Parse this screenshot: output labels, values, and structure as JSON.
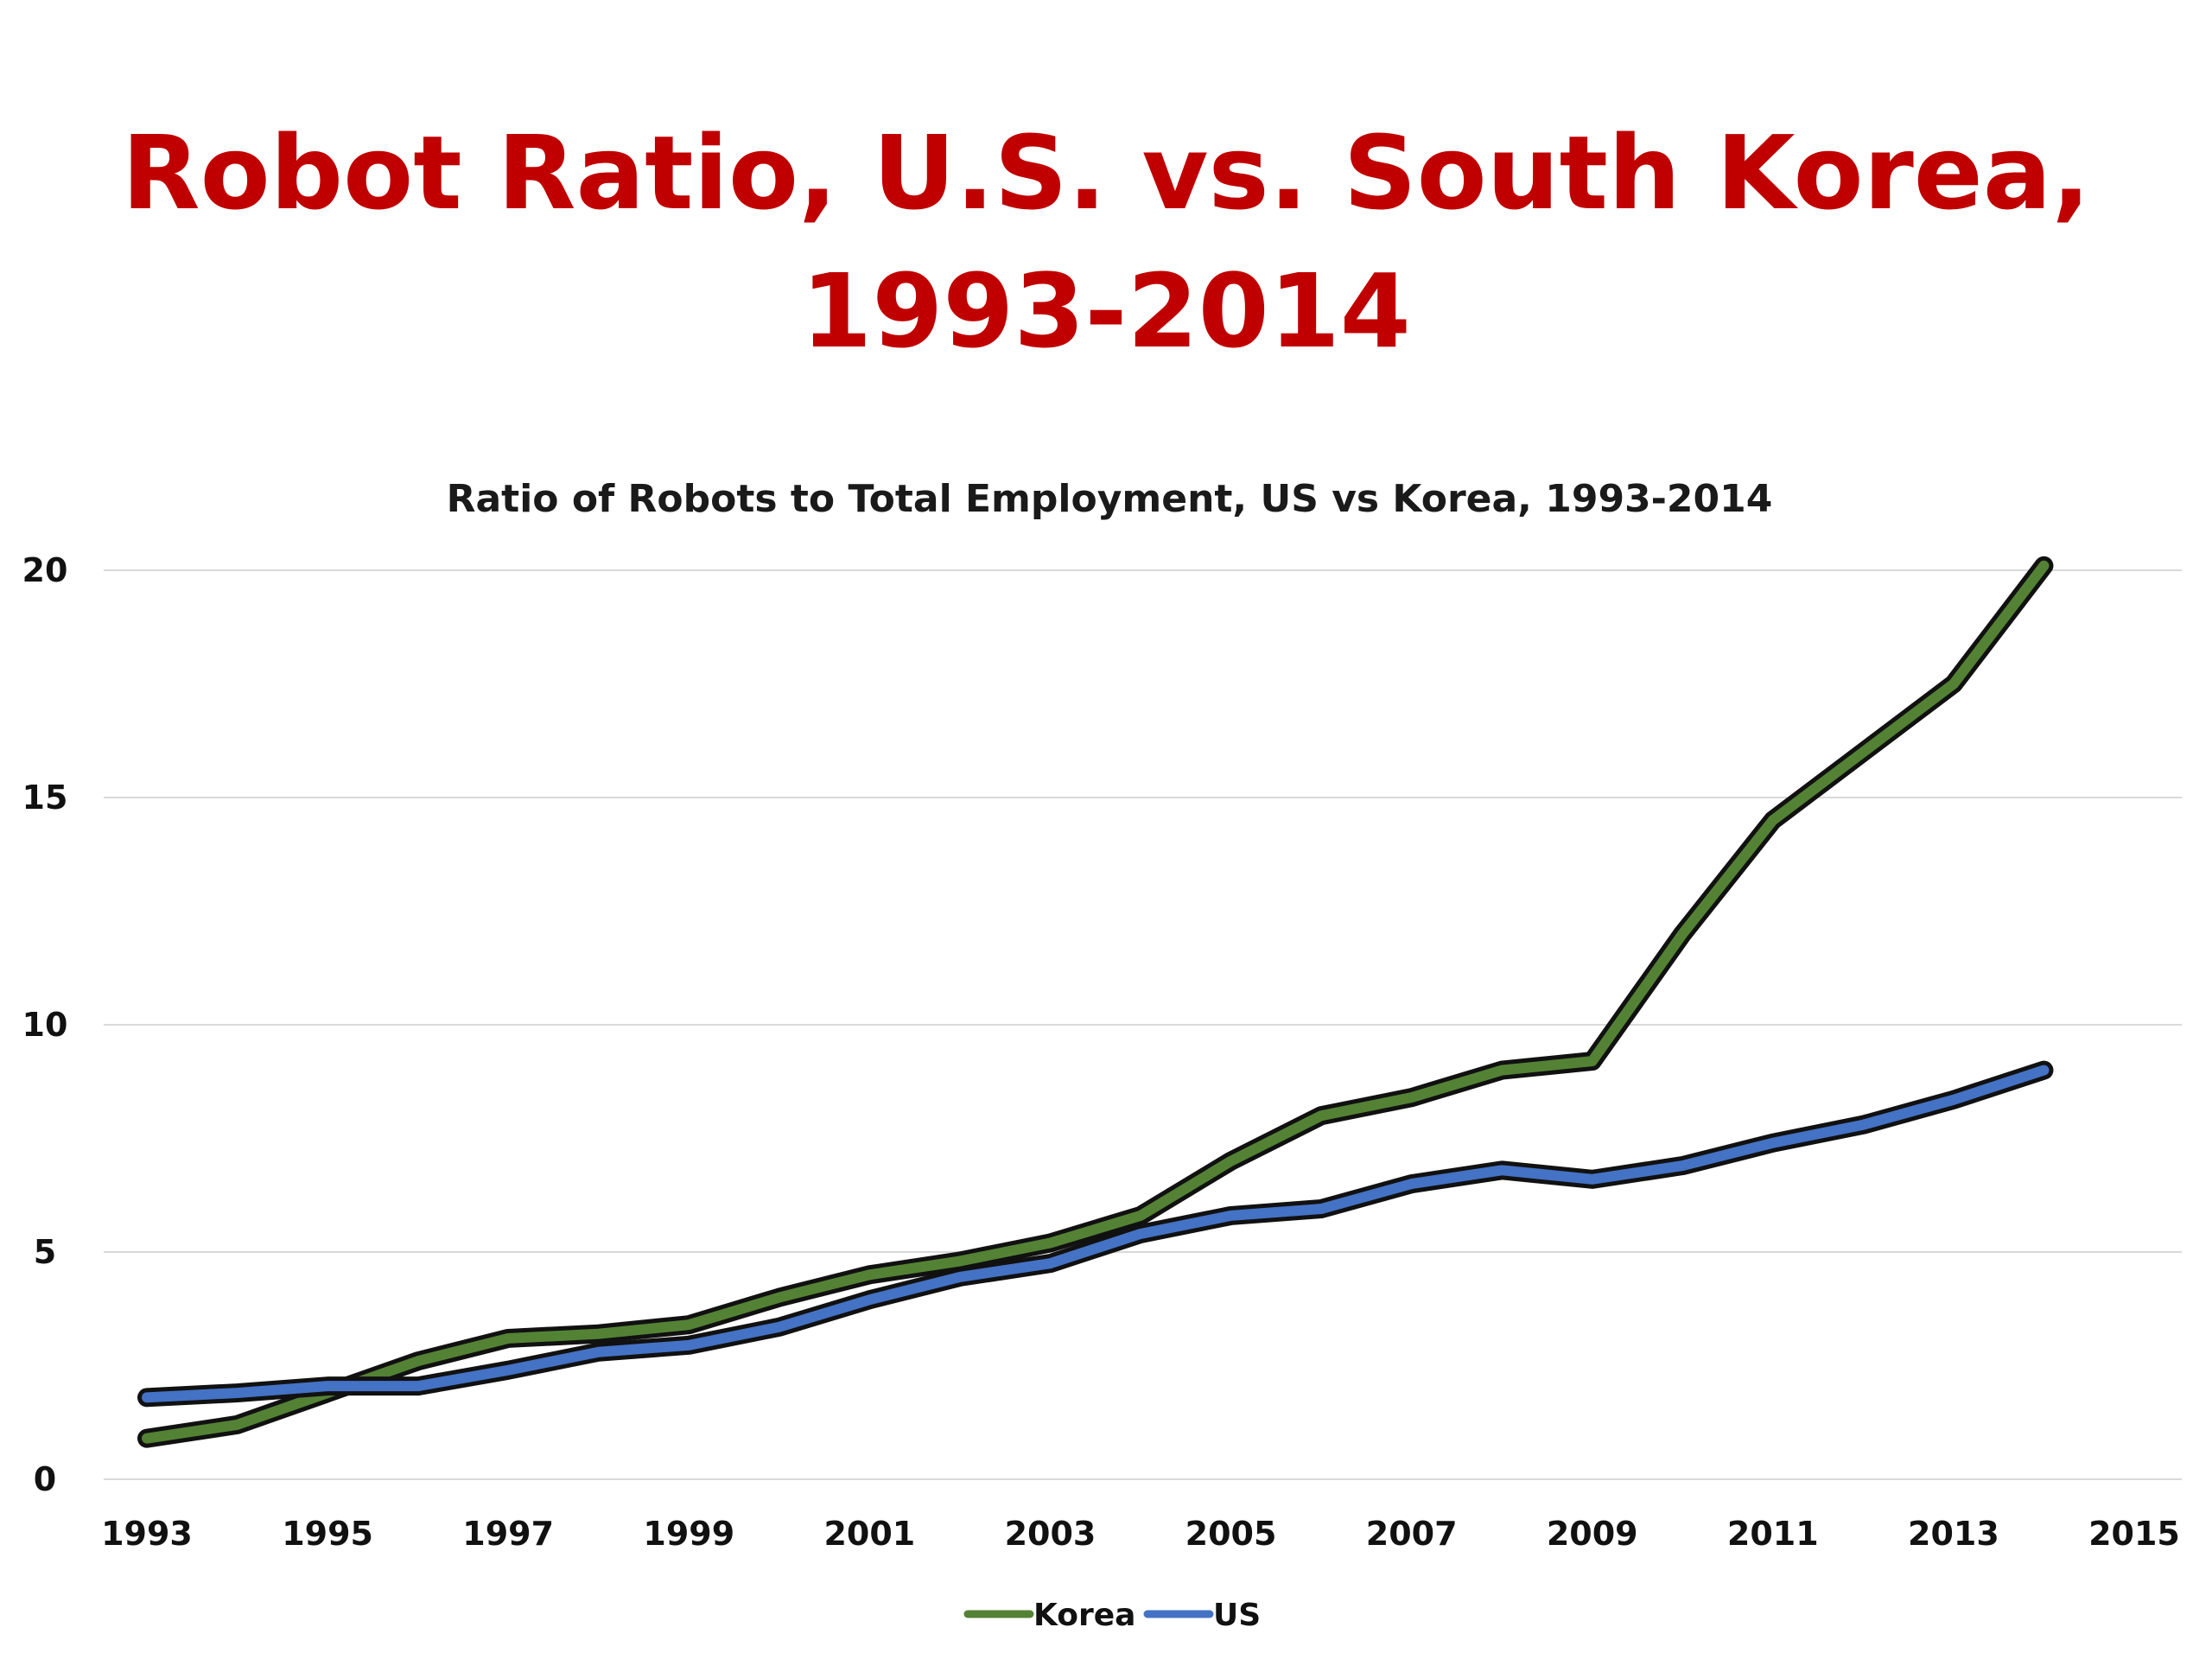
{
  "slide": {
    "title_line1": "Robot Ratio, U.S. vs. South Korea,",
    "title_line2": "1993-2014"
  },
  "colors": {
    "title": "#c00000",
    "korea": "#548235",
    "us": "#4472c4",
    "outline": "#111111",
    "grid": "#d9d9d9"
  },
  "chart_data": {
    "type": "line",
    "title": "Ratio of Robots to Total Employment, US vs Korea, 1993-2014",
    "xlabel": "",
    "ylabel": "",
    "xlim": [
      1993,
      2015
    ],
    "ylim": [
      0,
      20
    ],
    "x_ticks": [
      "1993",
      "1995",
      "1997",
      "1999",
      "2001",
      "2003",
      "2005",
      "2007",
      "2009",
      "2011",
      "2013",
      "2015"
    ],
    "y_ticks": [
      "0",
      "5",
      "10",
      "15",
      "20"
    ],
    "grid": true,
    "legend_position": "bottom",
    "series": [
      {
        "name": "Korea",
        "color": "#548235",
        "x": [
          1993,
          1994,
          1995,
          1996,
          1997,
          1998,
          1999,
          2000,
          2001,
          2002,
          2003,
          2004,
          2005,
          2006,
          2007,
          2008,
          2009,
          2010,
          2011,
          2012,
          2013,
          2014
        ],
        "y": [
          0.9,
          1.2,
          1.9,
          2.6,
          3.1,
          3.2,
          3.4,
          4.0,
          4.5,
          4.8,
          5.2,
          5.8,
          7.0,
          8.0,
          8.4,
          9.0,
          9.2,
          12.0,
          14.5,
          16.0,
          17.5,
          20.1
        ]
      },
      {
        "name": "US",
        "color": "#4472c4",
        "x": [
          1993,
          1994,
          1995,
          1996,
          1997,
          1998,
          1999,
          2000,
          2001,
          2002,
          2003,
          2004,
          2005,
          2006,
          2007,
          2008,
          2009,
          2010,
          2011,
          2012,
          2013,
          2014
        ],
        "y": [
          1.8,
          1.9,
          2.05,
          2.05,
          2.4,
          2.8,
          2.95,
          3.35,
          3.95,
          4.45,
          4.75,
          5.4,
          5.8,
          5.95,
          6.5,
          6.8,
          6.6,
          6.9,
          7.4,
          7.8,
          8.35,
          9.0
        ]
      }
    ]
  }
}
